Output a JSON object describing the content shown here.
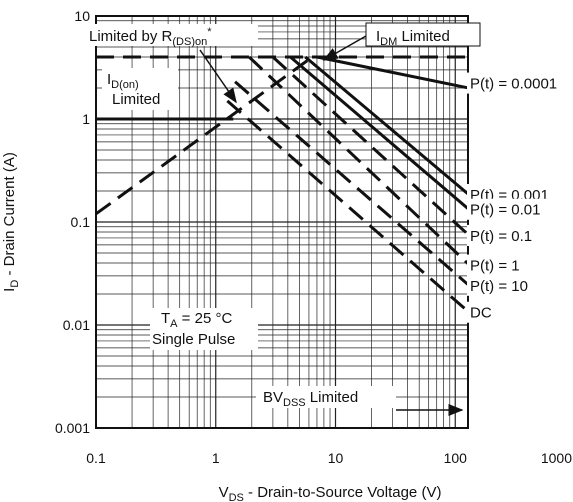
{
  "chart_data": {
    "type": "line",
    "xscale": "log",
    "yscale": "log",
    "xlim": [
      0.1,
      1000
    ],
    "ylim": [
      0.001,
      10
    ],
    "grid": true,
    "x_ticks": [
      "0.1",
      "1",
      "10",
      "100",
      "1000"
    ],
    "y_ticks": [
      "10",
      "1",
      "0.1",
      "0.01",
      "0.001"
    ],
    "xlabel_main": "V",
    "xlabel_sub": "DS",
    "xlabel_rest": " - Drain-to-Source Voltage (V)",
    "ylabel_main": "I",
    "ylabel_sub": "D",
    "ylabel_rest": " - Drain Current (A)",
    "annotations": {
      "rds": {
        "main": "Limited by R",
        "sub": "(DS)on",
        "sup": "*"
      },
      "idm": {
        "main": "I",
        "sub": "DM",
        "rest": " Limited"
      },
      "idon": {
        "main": "I",
        "sub": "D(on)",
        "line2": "Limited"
      },
      "ta": {
        "main": "T",
        "sub": "A",
        "rest": " = 25 °C",
        "line2": "Single Pulse"
      },
      "bvdss": {
        "main": "BV",
        "sub": "DSS",
        "rest": " Limited"
      }
    },
    "series": [
      {
        "name": "P(t) = 0.0001",
        "style": "solid",
        "x": [
          7,
          150
        ],
        "y": [
          4,
          1.93
        ]
      },
      {
        "name": "P(t) = 0.001",
        "style": "solid",
        "x": [
          5.6,
          150
        ],
        "y": [
          4,
          0.16
        ]
      },
      {
        "name": "P(t) = 0.01",
        "style": "solid",
        "x": [
          4.2,
          150
        ],
        "y": [
          4,
          0.115
        ]
      },
      {
        "name": "P(t) = 0.1",
        "style": "dashed",
        "x": [
          3.0,
          150
        ],
        "y": [
          4,
          0.064
        ]
      },
      {
        "name": "P(t) = 1",
        "style": "dashed",
        "x": [
          1.9,
          150
        ],
        "y": [
          4,
          0.033
        ]
      },
      {
        "name": "P(t) = 10",
        "style": "dashed",
        "x": [
          1.45,
          150
        ],
        "y": [
          2.3,
          0.021
        ]
      },
      {
        "name": "DC",
        "style": "dashed",
        "x": [
          1.25,
          150
        ],
        "y": [
          1.5,
          0.0115
        ]
      }
    ],
    "limit_lines": [
      {
        "id": "idm",
        "style": "dashed",
        "x": [
          0.1,
          150
        ],
        "y": [
          4,
          4
        ]
      },
      {
        "id": "idon",
        "style": "solid",
        "x": [
          0.1,
          1.4
        ],
        "y": [
          1,
          1
        ]
      },
      {
        "id": "rds",
        "style": "dashed",
        "x": [
          0.1,
          6.4
        ],
        "y": [
          0.12,
          4
        ]
      },
      {
        "id": "bvdss",
        "style": "dashed",
        "x": [
          150,
          150
        ],
        "y": [
          4,
          0.001
        ]
      }
    ]
  }
}
